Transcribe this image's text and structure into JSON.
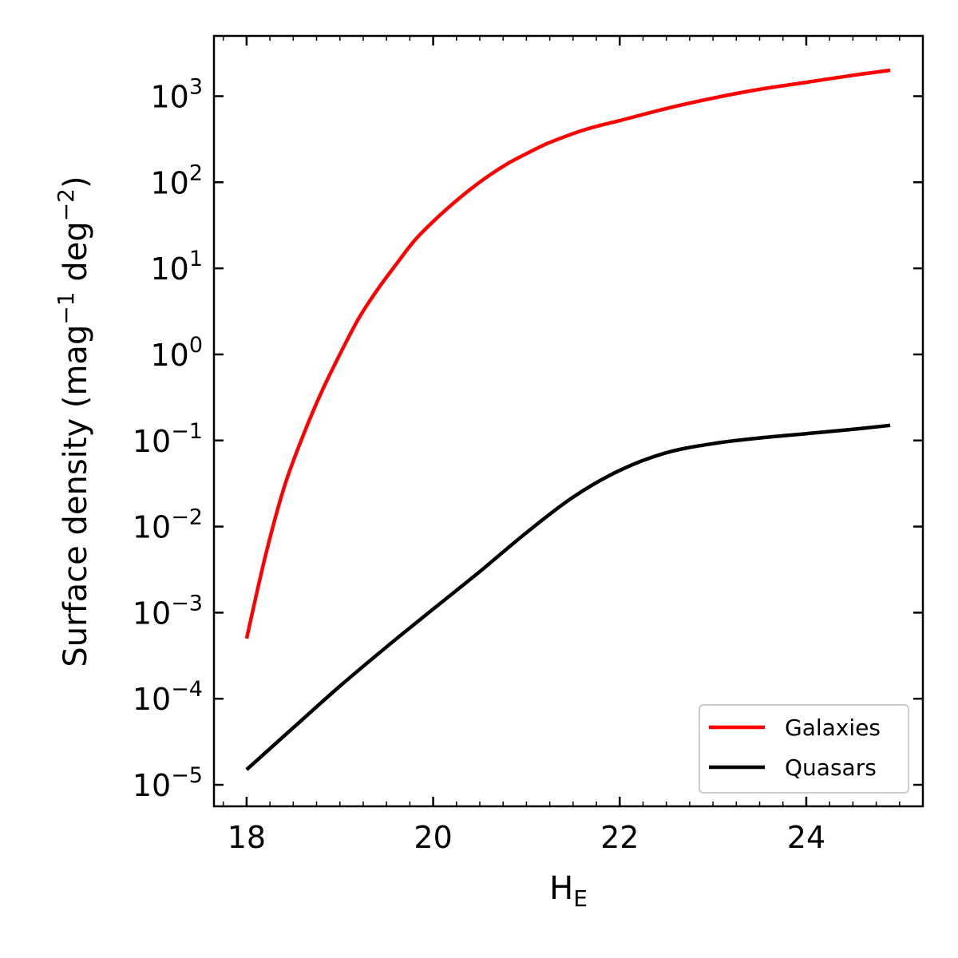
{
  "chart_data": {
    "type": "line",
    "xlabel": "H",
    "xlabel_sub": "E",
    "ylabel": "Surface density (mag",
    "ylabel_exp1": "−1",
    "ylabel_mid": " deg",
    "ylabel_exp2": "−2",
    "ylabel_end": ")",
    "xlim": [
      17.65,
      25.25
    ],
    "ylim_log10": [
      -5.25,
      3.7
    ],
    "yscale": "log",
    "x_ticks": [
      18,
      20,
      22,
      24
    ],
    "y_ticks": [
      {
        "base": "10",
        "exp": "−5",
        "value": -5
      },
      {
        "base": "10",
        "exp": "−4",
        "value": -4
      },
      {
        "base": "10",
        "exp": "−3",
        "value": -3
      },
      {
        "base": "10",
        "exp": "−2",
        "value": -2
      },
      {
        "base": "10",
        "exp": "−1",
        "value": -1
      },
      {
        "base": "10",
        "exp": "0",
        "value": 0
      },
      {
        "base": "10",
        "exp": "1",
        "value": 1
      },
      {
        "base": "10",
        "exp": "2",
        "value": 2
      },
      {
        "base": "10",
        "exp": "3",
        "value": 3
      }
    ],
    "grid": false,
    "legend": "bottom-right",
    "series": [
      {
        "name": "Galaxies",
        "color": "#ff0000",
        "x": [
          18.0,
          18.2,
          18.4,
          18.6,
          18.8,
          19.0,
          19.2,
          19.4,
          19.6,
          19.8,
          20.0,
          20.2,
          20.4,
          20.6,
          20.8,
          21.0,
          21.2,
          21.4,
          21.6,
          21.8,
          22.0,
          22.5,
          23.0,
          23.5,
          24.0,
          24.5,
          24.9
        ],
        "y": [
          0.0005,
          0.0045,
          0.028,
          0.11,
          0.36,
          1.0,
          2.6,
          5.6,
          11.0,
          21.0,
          35.0,
          55.0,
          83.0,
          120.0,
          165.0,
          215.0,
          275.0,
          335.0,
          400.0,
          460.0,
          520.0,
          720.0,
          950.0,
          1200.0,
          1450.0,
          1750.0,
          2000.0
        ]
      },
      {
        "name": "Quasars",
        "color": "#000000",
        "x": [
          18.0,
          18.5,
          19.0,
          19.5,
          20.0,
          20.5,
          21.0,
          21.5,
          22.0,
          22.5,
          23.0,
          23.5,
          24.0,
          24.5,
          24.9
        ],
        "y": [
          1.5e-05,
          4.6e-05,
          0.00014,
          0.0004,
          0.0011,
          0.003,
          0.0085,
          0.022,
          0.045,
          0.072,
          0.092,
          0.107,
          0.12,
          0.135,
          0.15
        ]
      }
    ]
  }
}
